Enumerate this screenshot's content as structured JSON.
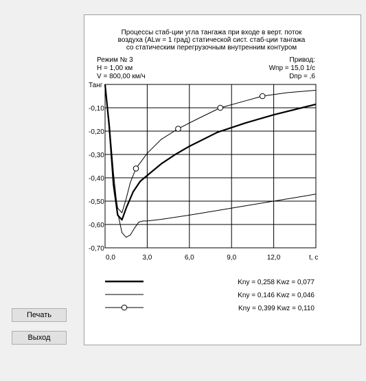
{
  "buttons": {
    "print_label": "Печать",
    "exit_label": "Выход"
  },
  "chart_data": {
    "type": "line",
    "title": [
      "Процессы стаб-ции угла тангажа при входе в верт. поток",
      "воздуха (ALw = 1 град) статической сист. стаб-ции тангажа",
      "со статическим перегрузочным внутренним контуром"
    ],
    "mode": [
      "Режим № 3",
      "H = 1,00 км",
      "V = 800,00 км/ч"
    ],
    "drive": [
      "Привод:",
      "Wпр = 15,0  1/с",
      "Dпр = ,6"
    ],
    "ylabel": "Танг",
    "xlabel": "t, с",
    "xlim": [
      0,
      15
    ],
    "ylim": [
      -0.7,
      0.0
    ],
    "x_ticks": [
      "0,0",
      "3,0",
      "6,0",
      "9,0",
      "12,0"
    ],
    "y_ticks": [
      "-0,10",
      "-0,20",
      "-0,30",
      "-0,40",
      "-0,50",
      "-0,60",
      "-0,70"
    ],
    "x_tick_values": [
      0,
      3,
      6,
      9,
      12
    ],
    "y_tick_values": [
      -0.1,
      -0.2,
      -0.3,
      -0.4,
      -0.5,
      -0.6,
      -0.7
    ],
    "grid": true,
    "series": [
      {
        "name": "Kny = 0,258 Kwz = 0,077",
        "style": "thick",
        "x": [
          0,
          0.3,
          0.6,
          0.9,
          1.2,
          1.5,
          2.0,
          2.5,
          3.0,
          4.0,
          5.0,
          6.0,
          8.0,
          10.0,
          12.0,
          14.0,
          15.0
        ],
        "y": [
          0,
          -0.18,
          -0.43,
          -0.56,
          -0.58,
          -0.53,
          -0.46,
          -0.415,
          -0.39,
          -0.34,
          -0.3,
          -0.265,
          -0.205,
          -0.165,
          -0.13,
          -0.1,
          -0.085
        ]
      },
      {
        "name": "Kny = 0,146 Kwz = 0,046",
        "style": "thin",
        "x": [
          0,
          0.3,
          0.6,
          0.9,
          1.2,
          1.5,
          1.8,
          2.1,
          2.4,
          2.7,
          3.0,
          4.0,
          6.0,
          8.0,
          10.0,
          12.0,
          14.0,
          15.0
        ],
        "y": [
          0,
          -0.16,
          -0.38,
          -0.55,
          -0.635,
          -0.655,
          -0.645,
          -0.615,
          -0.59,
          -0.585,
          -0.585,
          -0.578,
          -0.56,
          -0.54,
          -0.52,
          -0.5,
          -0.48,
          -0.47
        ]
      },
      {
        "name": "Kny = 0,399 Kwz = 0,110",
        "style": "markers",
        "x": [
          0,
          0.3,
          0.6,
          0.9,
          1.2,
          1.5,
          1.8,
          2.2,
          3.0,
          4.0,
          5.2,
          6.5,
          8.2,
          10.0,
          11.2,
          13.0,
          15.0
        ],
        "y": [
          0,
          -0.2,
          -0.42,
          -0.53,
          -0.55,
          -0.49,
          -0.42,
          -0.36,
          -0.295,
          -0.235,
          -0.19,
          -0.15,
          -0.1,
          -0.07,
          -0.05,
          -0.035,
          -0.025
        ],
        "marker_x": [
          2.2,
          5.2,
          8.2,
          11.2
        ]
      }
    ]
  }
}
